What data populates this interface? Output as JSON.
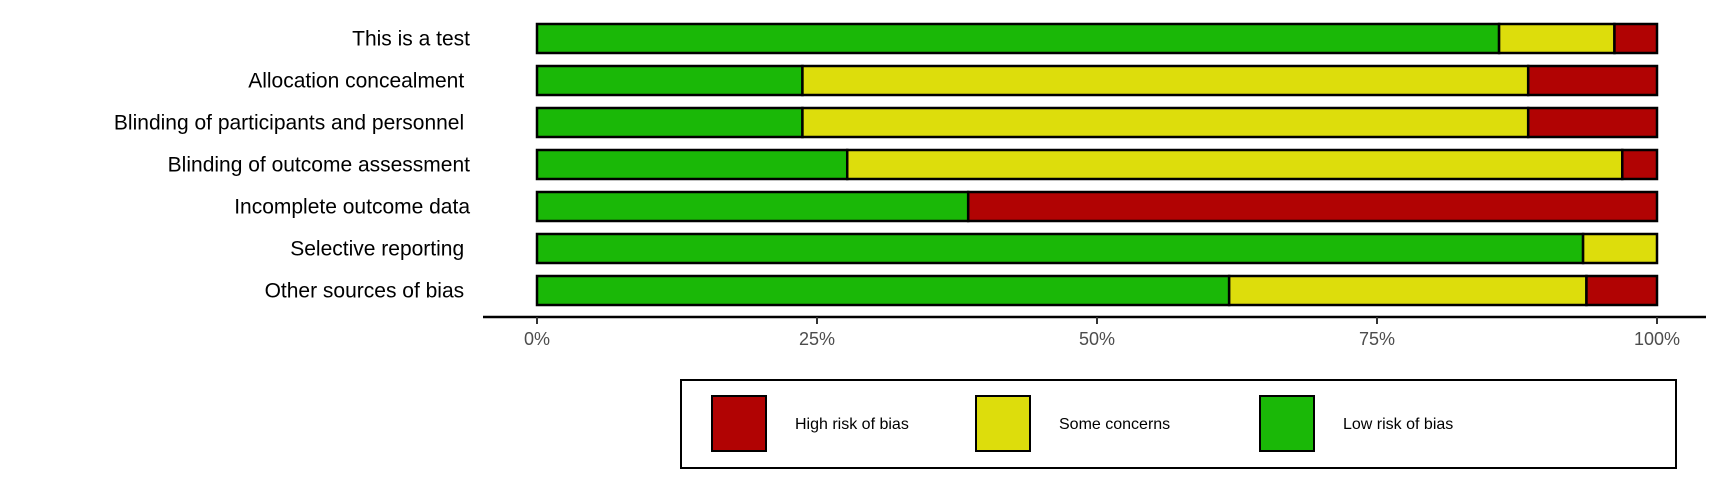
{
  "chart_data": {
    "type": "bar",
    "orientation": "horizontal",
    "stacked": true,
    "categories": [
      "This is a test",
      "Allocation concealment ",
      "Blinding of participants and personnel ",
      "Blinding of outcome assessment",
      "Incomplete outcome data",
      "Selective reporting ",
      "Other sources of bias "
    ],
    "series": [
      {
        "name": "Low risk of bias",
        "color": "#1ab807",
        "values": [
          85.9,
          23.7,
          23.7,
          27.7,
          38.5,
          93.4,
          61.8
        ]
      },
      {
        "name": "Some concerns",
        "color": "#dddd0c",
        "values": [
          10.3,
          64.8,
          64.8,
          69.2,
          0,
          6.6,
          31.9
        ]
      },
      {
        "name": "High risk of bias",
        "color": "#b10303",
        "values": [
          3.8,
          11.5,
          11.5,
          3.1,
          61.5,
          0,
          6.3
        ]
      }
    ],
    "xlim": [
      0,
      100
    ],
    "xticks": [
      "0%",
      "25%",
      "50%",
      "75%",
      "100%"
    ],
    "xtick_values": [
      0,
      25,
      50,
      75,
      100
    ],
    "legend": {
      "placement": "bottom",
      "order": [
        "High risk of bias",
        "Some concerns",
        "Low risk of bias"
      ]
    },
    "grid": false,
    "title": "",
    "xlabel": "",
    "ylabel": ""
  }
}
